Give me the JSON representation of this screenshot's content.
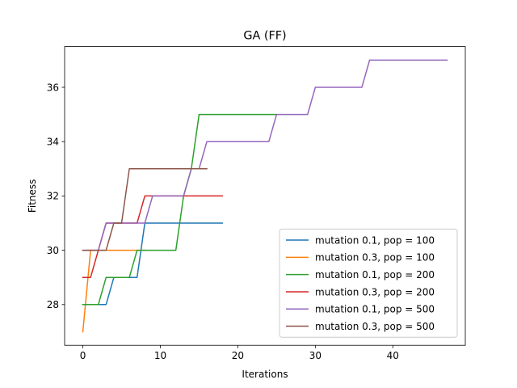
{
  "chart_data": {
    "type": "line",
    "title": "GA (FF)",
    "xlabel": "Iterations",
    "ylabel": "Fitness",
    "xlim": [
      -2.35,
      49.35
    ],
    "ylim": [
      26.5,
      37.5
    ],
    "xticks": [
      0,
      10,
      20,
      30,
      40
    ],
    "yticks": [
      28,
      30,
      32,
      34,
      36
    ],
    "legend_position": "lower right",
    "grid": false,
    "series": [
      {
        "name": "mutation 0.1, pop = 100",
        "color": "#1f77b4",
        "values": [
          28,
          28,
          28,
          28,
          29,
          29,
          29,
          29,
          31,
          31,
          31,
          31,
          31,
          31,
          31,
          31,
          31,
          31,
          31
        ]
      },
      {
        "name": "mutation 0.3, pop = 100",
        "color": "#ff7f0e",
        "values": [
          27,
          30,
          30,
          30,
          30,
          30,
          30,
          30,
          30
        ]
      },
      {
        "name": "mutation 0.1, pop = 200",
        "color": "#2ca02c",
        "values": [
          28,
          28,
          28,
          29,
          29,
          29,
          29,
          30,
          30,
          30,
          30,
          30,
          30,
          32,
          33,
          35,
          35,
          35,
          35,
          35,
          35,
          35,
          35,
          35,
          35,
          35
        ]
      },
      {
        "name": "mutation 0.3, pop = 200",
        "color": "#d62728",
        "values": [
          29,
          29,
          30,
          31,
          31,
          31,
          31,
          31,
          32,
          32,
          32,
          32,
          32,
          32,
          32,
          32,
          32,
          32,
          32
        ]
      },
      {
        "name": "mutation 0.1, pop = 500",
        "color": "#9467bd",
        "values": [
          30,
          30,
          30,
          31,
          31,
          31,
          31,
          31,
          31,
          32,
          32,
          32,
          32,
          32,
          33,
          33,
          34,
          34,
          34,
          34,
          34,
          34,
          34,
          34,
          34,
          35,
          35,
          35,
          35,
          35,
          36,
          36,
          36,
          36,
          36,
          36,
          36,
          37,
          37,
          37,
          37,
          37,
          37,
          37,
          37,
          37,
          37,
          37
        ]
      },
      {
        "name": "mutation 0.3, pop = 500",
        "color": "#8c564b",
        "values": [
          30,
          30,
          30,
          30,
          31,
          31,
          33,
          33,
          33,
          33,
          33,
          33,
          33,
          33,
          33,
          33,
          33
        ]
      }
    ]
  }
}
